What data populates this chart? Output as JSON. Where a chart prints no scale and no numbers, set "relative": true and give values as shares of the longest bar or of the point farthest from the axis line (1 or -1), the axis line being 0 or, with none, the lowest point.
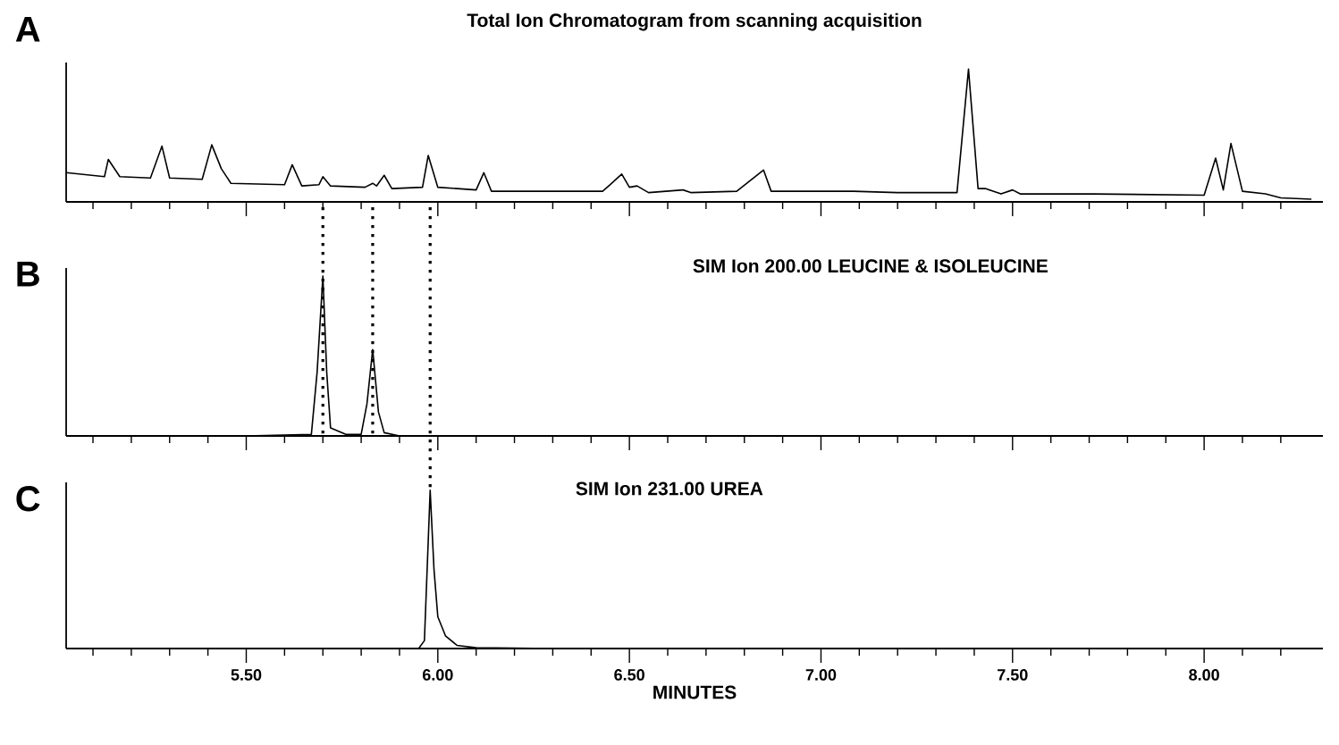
{
  "chart_data": [
    {
      "type": "line",
      "title": "Total Ion Chromatogram from scanning acquisition",
      "annotations": [
        "A"
      ],
      "relative": true,
      "color": "#000000",
      "xlim": [
        5.03,
        8.31
      ],
      "tick_labels": false,
      "xticks": [
        {
          "value": 5.1,
          "label": null
        },
        {
          "value": 5.2,
          "label": null
        },
        {
          "value": 5.3,
          "label": null
        },
        {
          "value": 5.4,
          "label": null
        },
        {
          "value": 5.5,
          "label": null
        },
        {
          "value": 5.6,
          "label": null
        },
        {
          "value": 5.7,
          "label": null
        },
        {
          "value": 5.8,
          "label": null
        },
        {
          "value": 5.9,
          "label": null
        },
        {
          "value": 6.0,
          "label": null
        },
        {
          "value": 6.1,
          "label": null
        },
        {
          "value": 6.2,
          "label": null
        },
        {
          "value": 6.3,
          "label": null
        },
        {
          "value": 6.4,
          "label": null
        },
        {
          "value": 6.5,
          "label": null
        },
        {
          "value": 6.6,
          "label": null
        },
        {
          "value": 6.7,
          "label": null
        },
        {
          "value": 6.8,
          "label": null
        },
        {
          "value": 6.9,
          "label": null
        },
        {
          "value": 7.0,
          "label": null
        },
        {
          "value": 7.1,
          "label": null
        },
        {
          "value": 7.2,
          "label": null
        },
        {
          "value": 7.3,
          "label": null
        },
        {
          "value": 7.4,
          "label": null
        },
        {
          "value": 7.5,
          "label": null
        },
        {
          "value": 7.6,
          "label": null
        },
        {
          "value": 7.7,
          "label": null
        },
        {
          "value": 7.8,
          "label": null
        },
        {
          "value": 7.9,
          "label": null
        },
        {
          "value": 8.0,
          "label": null
        },
        {
          "value": 8.1,
          "label": null
        },
        {
          "value": 8.2,
          "label": null
        }
      ],
      "x": [
        5.03,
        5.13,
        5.14,
        5.17,
        5.25,
        5.28,
        5.3,
        5.385,
        5.41,
        5.435,
        5.46,
        5.6,
        5.62,
        5.645,
        5.69,
        5.7,
        5.72,
        5.81,
        5.83,
        5.84,
        5.86,
        5.88,
        5.96,
        5.975,
        6.0,
        6.1,
        6.12,
        6.14,
        6.43,
        6.45,
        6.48,
        6.5,
        6.52,
        6.55,
        6.64,
        6.66,
        6.78,
        6.85,
        6.87,
        7.085,
        7.2,
        7.355,
        7.385,
        7.41,
        7.43,
        7.47,
        7.5,
        7.52,
        7.71,
        8.0,
        8.03,
        8.05,
        8.07,
        8.1,
        8.16,
        8.2,
        8.28
      ],
      "values": [
        0.22,
        0.19,
        0.32,
        0.19,
        0.18,
        0.42,
        0.18,
        0.17,
        0.43,
        0.25,
        0.14,
        0.13,
        0.28,
        0.12,
        0.13,
        0.19,
        0.12,
        0.11,
        0.14,
        0.12,
        0.2,
        0.1,
        0.11,
        0.35,
        0.11,
        0.09,
        0.22,
        0.08,
        0.08,
        0.13,
        0.21,
        0.11,
        0.12,
        0.07,
        0.09,
        0.07,
        0.08,
        0.24,
        0.08,
        0.08,
        0.07,
        0.07,
        1.0,
        0.1,
        0.1,
        0.06,
        0.09,
        0.06,
        0.06,
        0.05,
        0.33,
        0.09,
        0.44,
        0.08,
        0.06,
        0.03,
        0.02
      ]
    },
    {
      "type": "line",
      "title": "SIM Ion 200.00 LEUCINE & ISOLEUCINE",
      "annotations": [
        "B"
      ],
      "relative": true,
      "color": "#000000",
      "xlim": [
        5.03,
        8.31
      ],
      "tick_labels": false,
      "xticks": [
        {
          "value": 5.1,
          "label": null
        },
        {
          "value": 5.2,
          "label": null
        },
        {
          "value": 5.3,
          "label": null
        },
        {
          "value": 5.4,
          "label": null
        },
        {
          "value": 5.5,
          "label": null
        },
        {
          "value": 5.6,
          "label": null
        },
        {
          "value": 5.7,
          "label": null
        },
        {
          "value": 5.8,
          "label": null
        },
        {
          "value": 5.9,
          "label": null
        },
        {
          "value": 6.0,
          "label": null
        },
        {
          "value": 6.1,
          "label": null
        },
        {
          "value": 6.2,
          "label": null
        },
        {
          "value": 6.3,
          "label": null
        },
        {
          "value": 6.4,
          "label": null
        },
        {
          "value": 6.5,
          "label": null
        },
        {
          "value": 6.6,
          "label": null
        },
        {
          "value": 6.7,
          "label": null
        },
        {
          "value": 6.8,
          "label": null
        },
        {
          "value": 6.9,
          "label": null
        },
        {
          "value": 7.0,
          "label": null
        },
        {
          "value": 7.1,
          "label": null
        },
        {
          "value": 7.2,
          "label": null
        },
        {
          "value": 7.3,
          "label": null
        },
        {
          "value": 7.4,
          "label": null
        },
        {
          "value": 7.5,
          "label": null
        },
        {
          "value": 7.6,
          "label": null
        },
        {
          "value": 7.7,
          "label": null
        },
        {
          "value": 7.8,
          "label": null
        },
        {
          "value": 7.9,
          "label": null
        },
        {
          "value": 8.0,
          "label": null
        },
        {
          "value": 8.1,
          "label": null
        },
        {
          "value": 8.2,
          "label": null
        }
      ],
      "ref_lines": [
        {
          "axis": "x",
          "value": 5.7,
          "line_style": "dotted"
        },
        {
          "axis": "x",
          "value": 5.83,
          "line_style": "dotted"
        },
        {
          "axis": "x",
          "value": 5.98,
          "line_style": "dotted"
        }
      ],
      "x": [
        5.03,
        5.5,
        5.67,
        5.685,
        5.7,
        5.71,
        5.72,
        5.76,
        5.8,
        5.815,
        5.83,
        5.845,
        5.86,
        5.9,
        8.31
      ],
      "values": [
        0,
        0,
        0.01,
        0.4,
        1.0,
        0.4,
        0.05,
        0.01,
        0.01,
        0.2,
        0.54,
        0.15,
        0.02,
        0,
        0
      ]
    },
    {
      "type": "line",
      "title": "SIM Ion 231.00 UREA",
      "xlabel": "MINUTES",
      "annotations": [
        "C"
      ],
      "relative": true,
      "color": "#000000",
      "xlim": [
        5.03,
        8.31
      ],
      "tick_labels": "x",
      "xticks": [
        {
          "value": 5.1,
          "label": null
        },
        {
          "value": 5.2,
          "label": null
        },
        {
          "value": 5.3,
          "label": null
        },
        {
          "value": 5.4,
          "label": null
        },
        {
          "value": 5.5,
          "label": "5.50"
        },
        {
          "value": 5.6,
          "label": null
        },
        {
          "value": 5.7,
          "label": null
        },
        {
          "value": 5.8,
          "label": null
        },
        {
          "value": 5.9,
          "label": null
        },
        {
          "value": 6.0,
          "label": "6.00"
        },
        {
          "value": 6.1,
          "label": null
        },
        {
          "value": 6.2,
          "label": null
        },
        {
          "value": 6.3,
          "label": null
        },
        {
          "value": 6.4,
          "label": null
        },
        {
          "value": 6.5,
          "label": "6.50"
        },
        {
          "value": 6.6,
          "label": null
        },
        {
          "value": 6.7,
          "label": null
        },
        {
          "value": 6.8,
          "label": null
        },
        {
          "value": 6.9,
          "label": null
        },
        {
          "value": 7.0,
          "label": "7.00"
        },
        {
          "value": 7.1,
          "label": null
        },
        {
          "value": 7.2,
          "label": null
        },
        {
          "value": 7.3,
          "label": null
        },
        {
          "value": 7.4,
          "label": null
        },
        {
          "value": 7.5,
          "label": "7.50"
        },
        {
          "value": 7.6,
          "label": null
        },
        {
          "value": 7.7,
          "label": null
        },
        {
          "value": 7.8,
          "label": null
        },
        {
          "value": 7.9,
          "label": null
        },
        {
          "value": 8.0,
          "label": "8.00"
        },
        {
          "value": 8.1,
          "label": null
        },
        {
          "value": 8.2,
          "label": null
        }
      ],
      "x": [
        5.03,
        5.95,
        5.965,
        5.98,
        5.99,
        6.0,
        6.02,
        6.05,
        6.1,
        6.3,
        8.31
      ],
      "values": [
        0,
        0,
        0.05,
        1.0,
        0.5,
        0.2,
        0.08,
        0.02,
        0.005,
        0,
        0
      ]
    }
  ]
}
